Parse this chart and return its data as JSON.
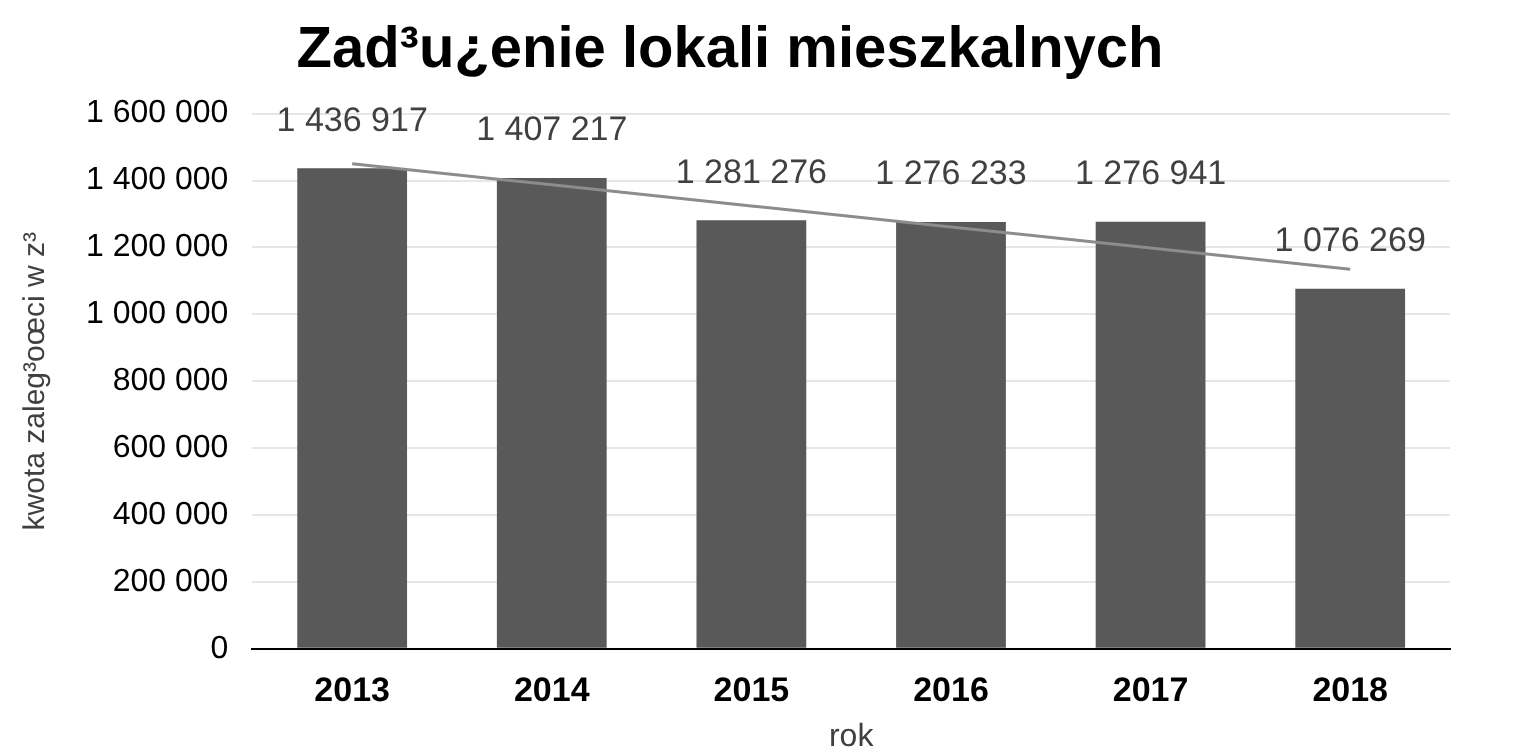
{
  "chart_data": {
    "type": "bar",
    "title": "Zad³u¿enie lokali mieszkalnych",
    "xlabel": "rok",
    "ylabel": "kwota zaleg³oœci w z³",
    "categories": [
      "2013",
      "2014",
      "2015",
      "2016",
      "2017",
      "2018"
    ],
    "series": [
      {
        "color": "#595959",
        "values": [
          1436917,
          1407217,
          1281276,
          1276233,
          1276941,
          1076269
        ],
        "value_labels": [
          "1 436 917",
          "1 407 217",
          "1 281 276",
          "1 276 233",
          "1 276 941",
          "1 076 269"
        ]
      },
      {
        "type": "line",
        "color": "#8c8c8c",
        "values": [
          1450000,
          1387000,
          1324000,
          1261000,
          1198000,
          1135000
        ]
      }
    ],
    "ylim": [
      0,
      1600000
    ],
    "yticks": [
      {
        "value": 0,
        "label": "0"
      },
      {
        "value": 200000,
        "label": "200 000"
      },
      {
        "value": 400000,
        "label": "400 000"
      },
      {
        "value": 600000,
        "label": "600 000"
      },
      {
        "value": 800000,
        "label": "800 000"
      },
      {
        "value": 1000000,
        "label": "1 000 000"
      },
      {
        "value": 1200000,
        "label": "1 200 000"
      },
      {
        "value": 1400000,
        "label": "1 400 000"
      },
      {
        "value": 1600000,
        "label": "1 600 000"
      }
    ],
    "grid": "y",
    "legend": false,
    "marker": "none"
  }
}
